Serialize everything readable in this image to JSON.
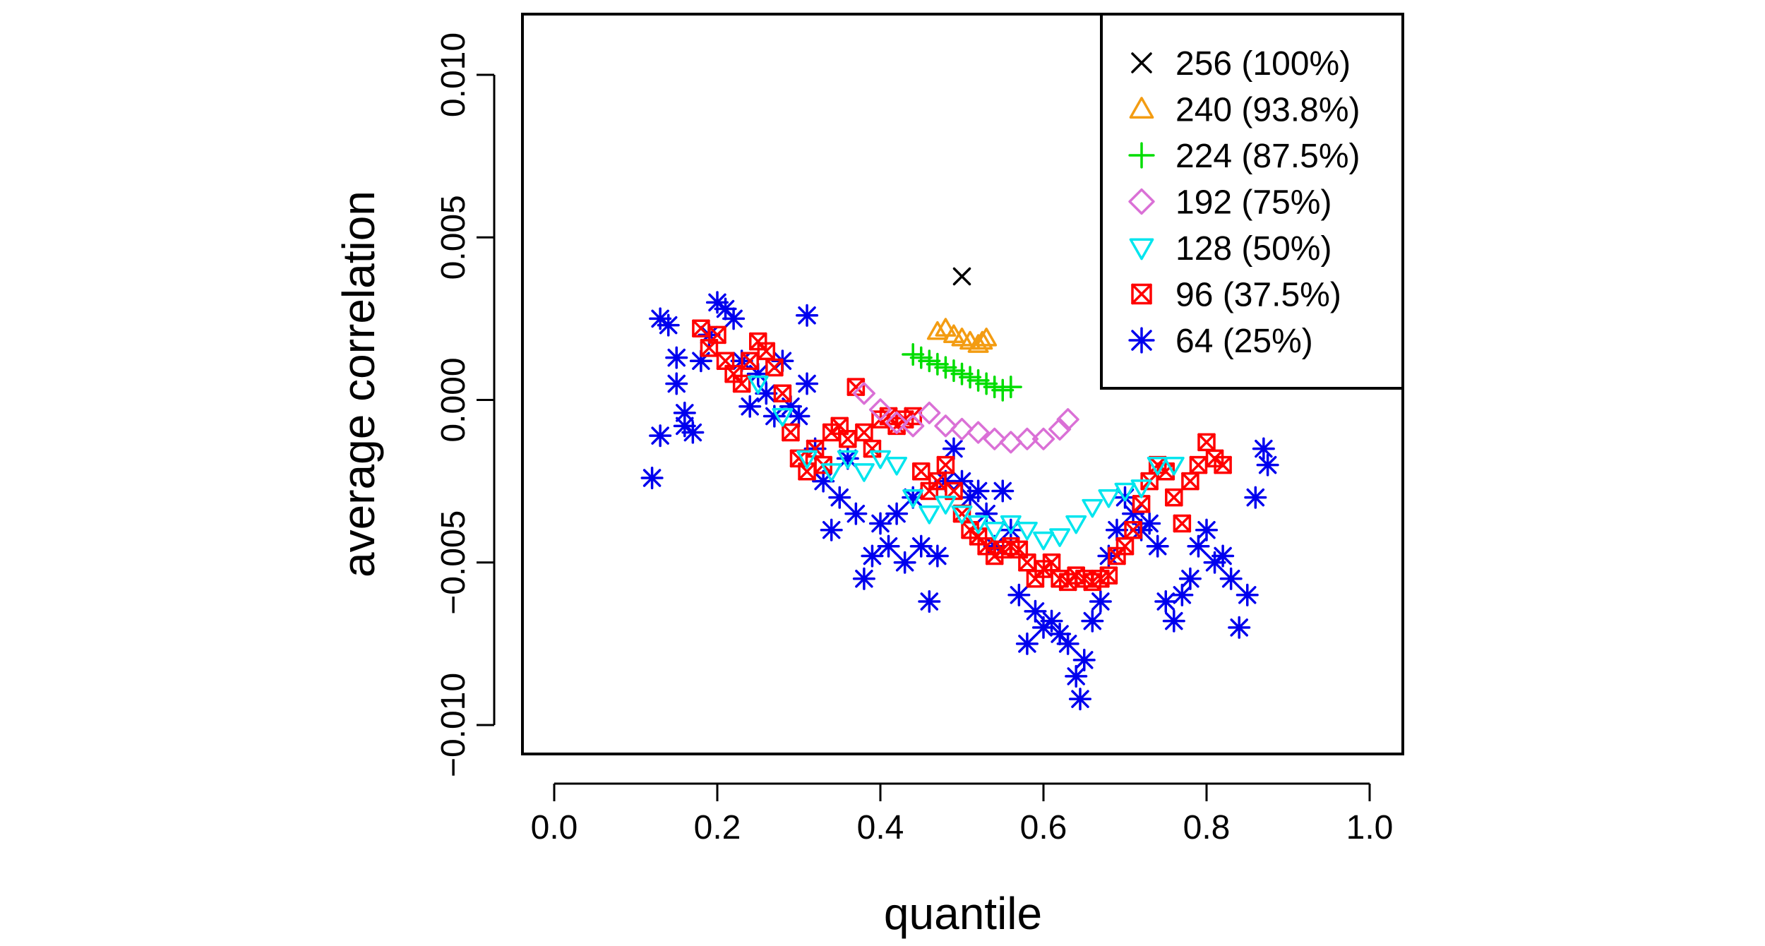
{
  "chart_data": {
    "type": "scatter",
    "xlabel": "quantile",
    "ylabel": "average correlation",
    "xlim": [
      0.0,
      1.0
    ],
    "ylim": [
      -0.01,
      0.01
    ],
    "x_ticks": [
      0.0,
      0.2,
      0.4,
      0.6,
      0.8,
      1.0
    ],
    "x_tick_labels": [
      "0.0",
      "0.2",
      "0.4",
      "0.6",
      "0.8",
      "1.0"
    ],
    "y_ticks": [
      -0.01,
      -0.005,
      0.0,
      0.005,
      0.01
    ],
    "y_tick_labels": [
      "−0.010",
      "−0.005",
      "0.000",
      "0.005",
      "0.010"
    ],
    "grid": false,
    "legend_position": "top-right",
    "series": [
      {
        "name": "256 (100%)",
        "color": "#000000",
        "marker": "x",
        "points": [
          [
            0.5,
            0.0038
          ]
        ]
      },
      {
        "name": "240 (93.8%)",
        "color": "#F39C12",
        "marker": "triangle-up",
        "points": [
          [
            0.47,
            0.0021
          ],
          [
            0.48,
            0.0022
          ],
          [
            0.49,
            0.002
          ],
          [
            0.5,
            0.0019
          ],
          [
            0.51,
            0.0018
          ],
          [
            0.52,
            0.0017
          ],
          [
            0.525,
            0.0018
          ],
          [
            0.53,
            0.0019
          ]
        ]
      },
      {
        "name": "224 (87.5%)",
        "color": "#00DD00",
        "marker": "plus",
        "points": [
          [
            0.44,
            0.0014
          ],
          [
            0.45,
            0.0013
          ],
          [
            0.46,
            0.0012
          ],
          [
            0.47,
            0.0011
          ],
          [
            0.48,
            0.001
          ],
          [
            0.49,
            0.0009
          ],
          [
            0.5,
            0.0008
          ],
          [
            0.51,
            0.0007
          ],
          [
            0.52,
            0.0006
          ],
          [
            0.53,
            0.0005
          ],
          [
            0.54,
            0.0004
          ],
          [
            0.55,
            0.0003
          ],
          [
            0.56,
            0.0004
          ]
        ]
      },
      {
        "name": "192 (75%)",
        "color": "#DA70D6",
        "marker": "diamond",
        "points": [
          [
            0.38,
            0.0002
          ],
          [
            0.4,
            -0.0003
          ],
          [
            0.42,
            -0.0007
          ],
          [
            0.44,
            -0.0008
          ],
          [
            0.46,
            -0.0004
          ],
          [
            0.48,
            -0.0008
          ],
          [
            0.5,
            -0.0009
          ],
          [
            0.52,
            -0.001
          ],
          [
            0.54,
            -0.0012
          ],
          [
            0.56,
            -0.0013
          ],
          [
            0.58,
            -0.0012
          ],
          [
            0.6,
            -0.0012
          ],
          [
            0.62,
            -0.0009
          ],
          [
            0.63,
            -0.0006
          ]
        ]
      },
      {
        "name": "128 (50%)",
        "color": "#00E5EE",
        "marker": "triangle-down",
        "points": [
          [
            0.25,
            0.0005
          ],
          [
            0.28,
            -0.0005
          ],
          [
            0.31,
            -0.0018
          ],
          [
            0.34,
            -0.0022
          ],
          [
            0.36,
            -0.0018
          ],
          [
            0.38,
            -0.0022
          ],
          [
            0.4,
            -0.0018
          ],
          [
            0.42,
            -0.002
          ],
          [
            0.44,
            -0.003
          ],
          [
            0.46,
            -0.0035
          ],
          [
            0.48,
            -0.0032
          ],
          [
            0.5,
            -0.0035
          ],
          [
            0.52,
            -0.0038
          ],
          [
            0.54,
            -0.004
          ],
          [
            0.56,
            -0.0038
          ],
          [
            0.58,
            -0.004
          ],
          [
            0.6,
            -0.0043
          ],
          [
            0.62,
            -0.0042
          ],
          [
            0.64,
            -0.0038
          ],
          [
            0.66,
            -0.0033
          ],
          [
            0.68,
            -0.003
          ],
          [
            0.7,
            -0.0028
          ],
          [
            0.72,
            -0.0027
          ],
          [
            0.74,
            -0.002
          ],
          [
            0.76,
            -0.002
          ]
        ]
      },
      {
        "name": "96 (37.5%)",
        "color": "#FF0000",
        "marker": "square-x",
        "points": [
          [
            0.18,
            0.0022
          ],
          [
            0.19,
            0.0016
          ],
          [
            0.2,
            0.002
          ],
          [
            0.21,
            0.0012
          ],
          [
            0.22,
            0.0008
          ],
          [
            0.23,
            0.0005
          ],
          [
            0.24,
            0.0012
          ],
          [
            0.25,
            0.0018
          ],
          [
            0.26,
            0.0015
          ],
          [
            0.27,
            0.001
          ],
          [
            0.28,
            0.0002
          ],
          [
            0.29,
            -0.001
          ],
          [
            0.3,
            -0.0018
          ],
          [
            0.31,
            -0.0022
          ],
          [
            0.32,
            -0.0015
          ],
          [
            0.33,
            -0.002
          ],
          [
            0.34,
            -0.001
          ],
          [
            0.35,
            -0.0008
          ],
          [
            0.36,
            -0.0012
          ],
          [
            0.37,
            0.0004
          ],
          [
            0.38,
            -0.001
          ],
          [
            0.39,
            -0.0015
          ],
          [
            0.4,
            -0.0006
          ],
          [
            0.41,
            -0.0005
          ],
          [
            0.42,
            -0.0008
          ],
          [
            0.43,
            -0.0006
          ],
          [
            0.44,
            -0.0005
          ],
          [
            0.45,
            -0.0022
          ],
          [
            0.46,
            -0.0028
          ],
          [
            0.47,
            -0.0025
          ],
          [
            0.48,
            -0.002
          ],
          [
            0.49,
            -0.0028
          ],
          [
            0.5,
            -0.0035
          ],
          [
            0.51,
            -0.004
          ],
          [
            0.52,
            -0.0042
          ],
          [
            0.53,
            -0.0045
          ],
          [
            0.54,
            -0.0048
          ],
          [
            0.55,
            -0.0046
          ],
          [
            0.56,
            -0.0045
          ],
          [
            0.57,
            -0.0046
          ],
          [
            0.58,
            -0.005
          ],
          [
            0.59,
            -0.0055
          ],
          [
            0.6,
            -0.0052
          ],
          [
            0.61,
            -0.005
          ],
          [
            0.62,
            -0.0055
          ],
          [
            0.63,
            -0.0056
          ],
          [
            0.64,
            -0.0054
          ],
          [
            0.65,
            -0.0055
          ],
          [
            0.66,
            -0.0056
          ],
          [
            0.67,
            -0.0055
          ],
          [
            0.68,
            -0.0054
          ],
          [
            0.69,
            -0.0048
          ],
          [
            0.7,
            -0.0045
          ],
          [
            0.71,
            -0.004
          ],
          [
            0.72,
            -0.0032
          ],
          [
            0.73,
            -0.0025
          ],
          [
            0.74,
            -0.002
          ],
          [
            0.75,
            -0.0022
          ],
          [
            0.76,
            -0.003
          ],
          [
            0.77,
            -0.0038
          ],
          [
            0.78,
            -0.0025
          ],
          [
            0.79,
            -0.002
          ],
          [
            0.8,
            -0.0013
          ],
          [
            0.81,
            -0.0018
          ],
          [
            0.82,
            -0.002
          ]
        ]
      },
      {
        "name": "64 (25%)",
        "color": "#0000EE",
        "marker": "asterisk",
        "points": [
          [
            0.12,
            -0.0024
          ],
          [
            0.13,
            -0.0011
          ],
          [
            0.13,
            0.0025
          ],
          [
            0.14,
            0.0023
          ],
          [
            0.15,
            0.0013
          ],
          [
            0.15,
            0.0005
          ],
          [
            0.16,
            -0.0004
          ],
          [
            0.16,
            -0.0008
          ],
          [
            0.17,
            -0.001
          ],
          [
            0.18,
            0.0012
          ],
          [
            0.19,
            0.002
          ],
          [
            0.2,
            0.003
          ],
          [
            0.21,
            0.0028
          ],
          [
            0.22,
            0.0025
          ],
          [
            0.23,
            0.0012
          ],
          [
            0.24,
            -0.0002
          ],
          [
            0.25,
            0.0008
          ],
          [
            0.26,
            0.0002
          ],
          [
            0.27,
            -0.0005
          ],
          [
            0.28,
            0.0012
          ],
          [
            0.29,
            -0.0002
          ],
          [
            0.3,
            -0.0005
          ],
          [
            0.31,
            0.0026
          ],
          [
            0.31,
            0.0005
          ],
          [
            0.32,
            -0.0015
          ],
          [
            0.33,
            -0.0025
          ],
          [
            0.34,
            -0.004
          ],
          [
            0.35,
            -0.003
          ],
          [
            0.36,
            -0.0018
          ],
          [
            0.37,
            -0.0035
          ],
          [
            0.38,
            -0.0055
          ],
          [
            0.39,
            -0.0048
          ],
          [
            0.4,
            -0.0038
          ],
          [
            0.41,
            -0.0045
          ],
          [
            0.42,
            -0.0035
          ],
          [
            0.43,
            -0.005
          ],
          [
            0.44,
            -0.003
          ],
          [
            0.45,
            -0.0045
          ],
          [
            0.46,
            -0.0062
          ],
          [
            0.47,
            -0.0048
          ],
          [
            0.48,
            -0.0025
          ],
          [
            0.49,
            -0.0015
          ],
          [
            0.5,
            -0.0025
          ],
          [
            0.51,
            -0.003
          ],
          [
            0.52,
            -0.0028
          ],
          [
            0.53,
            -0.0035
          ],
          [
            0.54,
            -0.0045
          ],
          [
            0.55,
            -0.0028
          ],
          [
            0.56,
            -0.004
          ],
          [
            0.57,
            -0.006
          ],
          [
            0.58,
            -0.0075
          ],
          [
            0.59,
            -0.0065
          ],
          [
            0.6,
            -0.007
          ],
          [
            0.61,
            -0.0068
          ],
          [
            0.62,
            -0.0072
          ],
          [
            0.63,
            -0.0075
          ],
          [
            0.64,
            -0.0085
          ],
          [
            0.645,
            -0.0092
          ],
          [
            0.65,
            -0.008
          ],
          [
            0.66,
            -0.0068
          ],
          [
            0.67,
            -0.0062
          ],
          [
            0.68,
            -0.0048
          ],
          [
            0.69,
            -0.004
          ],
          [
            0.7,
            -0.003
          ],
          [
            0.71,
            -0.0035
          ],
          [
            0.72,
            -0.004
          ],
          [
            0.73,
            -0.0038
          ],
          [
            0.74,
            -0.0045
          ],
          [
            0.75,
            -0.0062
          ],
          [
            0.76,
            -0.0068
          ],
          [
            0.77,
            -0.006
          ],
          [
            0.78,
            -0.0055
          ],
          [
            0.79,
            -0.0045
          ],
          [
            0.8,
            -0.004
          ],
          [
            0.81,
            -0.005
          ],
          [
            0.82,
            -0.0048
          ],
          [
            0.83,
            -0.0055
          ],
          [
            0.84,
            -0.007
          ],
          [
            0.85,
            -0.006
          ],
          [
            0.86,
            -0.003
          ],
          [
            0.87,
            -0.0015
          ],
          [
            0.875,
            -0.002
          ]
        ]
      }
    ]
  }
}
